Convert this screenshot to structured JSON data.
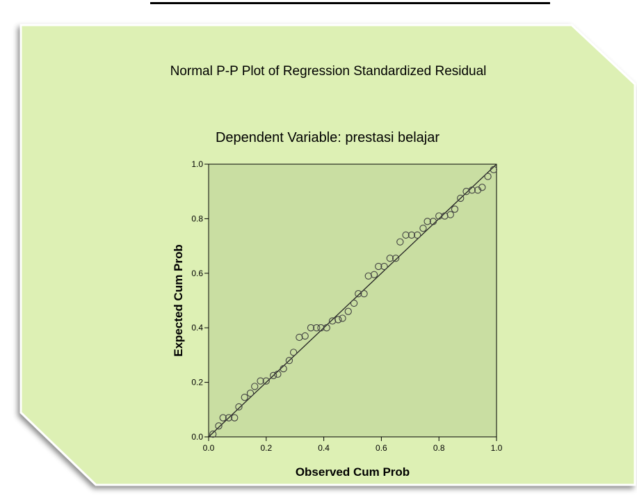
{
  "colors": {
    "panel_fill": "#ddf0b4",
    "plot_fill": "#c9dea2",
    "point_stroke": "#404040",
    "line": "#222222"
  },
  "chart_data": {
    "type": "scatter",
    "title": "Normal P-P Plot of Regression Standardized Residual",
    "subtitle": "Dependent Variable: prestasi belajar",
    "xlabel": "Observed Cum Prob",
    "ylabel": "Expected Cum Prob",
    "xlim": [
      0,
      1
    ],
    "ylim": [
      0,
      1
    ],
    "x_ticks": [
      "0.0",
      "0.2",
      "0.4",
      "0.6",
      "0.8",
      "1.0"
    ],
    "y_ticks": [
      "0.0",
      "0.2",
      "0.4",
      "0.6",
      "0.8",
      "1.0"
    ],
    "grid": false,
    "reference_line": [
      [
        0,
        0
      ],
      [
        1,
        1
      ]
    ],
    "points": [
      [
        0.015,
        0.01
      ],
      [
        0.035,
        0.04
      ],
      [
        0.05,
        0.07
      ],
      [
        0.07,
        0.07
      ],
      [
        0.09,
        0.07
      ],
      [
        0.105,
        0.11
      ],
      [
        0.125,
        0.145
      ],
      [
        0.145,
        0.16
      ],
      [
        0.16,
        0.185
      ],
      [
        0.18,
        0.205
      ],
      [
        0.2,
        0.205
      ],
      [
        0.225,
        0.225
      ],
      [
        0.24,
        0.23
      ],
      [
        0.26,
        0.25
      ],
      [
        0.28,
        0.28
      ],
      [
        0.295,
        0.31
      ],
      [
        0.315,
        0.365
      ],
      [
        0.335,
        0.37
      ],
      [
        0.355,
        0.4
      ],
      [
        0.375,
        0.4
      ],
      [
        0.39,
        0.4
      ],
      [
        0.41,
        0.4
      ],
      [
        0.43,
        0.425
      ],
      [
        0.45,
        0.43
      ],
      [
        0.465,
        0.435
      ],
      [
        0.485,
        0.46
      ],
      [
        0.505,
        0.49
      ],
      [
        0.52,
        0.525
      ],
      [
        0.54,
        0.525
      ],
      [
        0.555,
        0.59
      ],
      [
        0.575,
        0.595
      ],
      [
        0.59,
        0.625
      ],
      [
        0.61,
        0.625
      ],
      [
        0.63,
        0.655
      ],
      [
        0.65,
        0.655
      ],
      [
        0.665,
        0.715
      ],
      [
        0.685,
        0.74
      ],
      [
        0.705,
        0.74
      ],
      [
        0.725,
        0.74
      ],
      [
        0.745,
        0.765
      ],
      [
        0.76,
        0.79
      ],
      [
        0.78,
        0.79
      ],
      [
        0.8,
        0.81
      ],
      [
        0.82,
        0.81
      ],
      [
        0.84,
        0.815
      ],
      [
        0.855,
        0.835
      ],
      [
        0.875,
        0.875
      ],
      [
        0.895,
        0.9
      ],
      [
        0.915,
        0.905
      ],
      [
        0.935,
        0.905
      ],
      [
        0.95,
        0.915
      ],
      [
        0.97,
        0.955
      ],
      [
        0.99,
        0.98
      ]
    ]
  }
}
